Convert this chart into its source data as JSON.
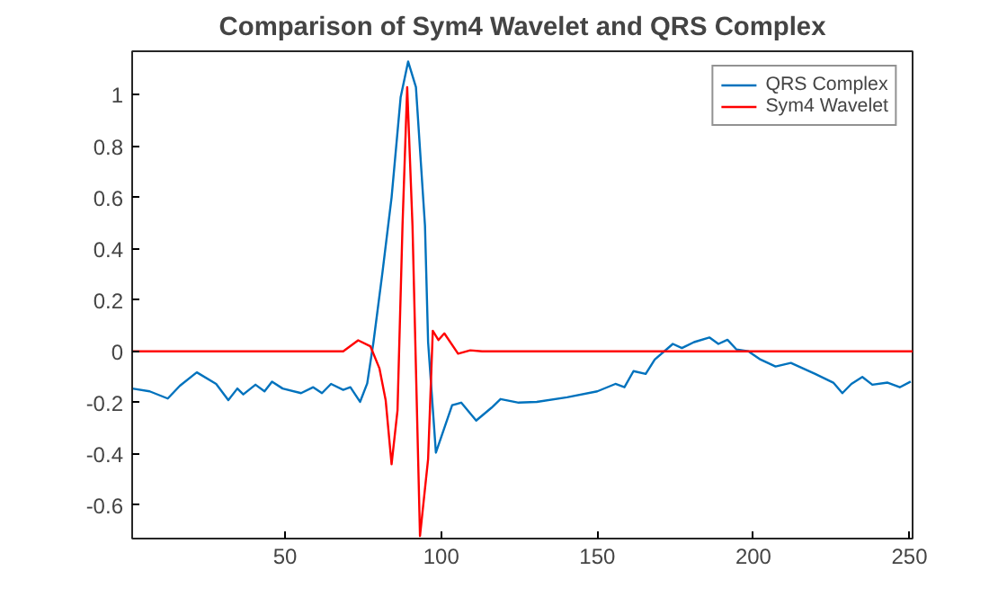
{
  "chart_data": {
    "type": "line",
    "title": "Comparison of Sym4 Wavelet and QRS Complex",
    "xlim": [
      1,
      251
    ],
    "xticks": [
      50,
      100,
      150,
      200,
      250
    ],
    "ylim": [
      -0.73,
      1.17
    ],
    "yticks": [
      -0.6,
      -0.4,
      -0.2,
      0,
      0.2,
      0.4,
      0.6,
      0.8,
      1
    ],
    "grid": false,
    "legend": "top right",
    "marker": "none",
    "line_style": "solid",
    "series": [
      {
        "name": "QRS Complex",
        "color": "#0072bd",
        "x": [
          1,
          6.6,
          12.4,
          16.3,
          21.7,
          27.9,
          31.8,
          34.7,
          36.6,
          40.5,
          43.4,
          45.8,
          49.2,
          55.1,
          59,
          61.8,
          64.7,
          68.6,
          70.9,
          74,
          76.3,
          78.3,
          81.2,
          84.1,
          87,
          89.4,
          91.9,
          94.8,
          95.8,
          98.3,
          103.5,
          106.4,
          111.2,
          116.1,
          119,
          124.8,
          130.6,
          140.3,
          150,
          155.8,
          158.7,
          161.6,
          165.5,
          168.4,
          174.2,
          177.1,
          181,
          185.9,
          188.8,
          191.7,
          194.6,
          198.4,
          202.3,
          207.1,
          212,
          219.8,
          225.6,
          228.5,
          231.4,
          234.9,
          238.1,
          243,
          246.9,
          250.4
        ],
        "values": [
          -0.145,
          -0.156,
          -0.184,
          -0.134,
          -0.082,
          -0.127,
          -0.19,
          -0.145,
          -0.168,
          -0.13,
          -0.156,
          -0.118,
          -0.145,
          -0.163,
          -0.14,
          -0.163,
          -0.127,
          -0.15,
          -0.14,
          -0.197,
          -0.125,
          0.036,
          0.31,
          0.6,
          0.99,
          1.13,
          1.03,
          0.49,
          0.036,
          -0.395,
          -0.21,
          -0.2,
          -0.27,
          -0.22,
          -0.186,
          -0.2,
          -0.197,
          -0.179,
          -0.156,
          -0.127,
          -0.14,
          -0.077,
          -0.088,
          -0.032,
          0.029,
          0.013,
          0.036,
          0.054,
          0.029,
          0.045,
          0.007,
          0.0,
          -0.032,
          -0.059,
          -0.045,
          -0.088,
          -0.122,
          -0.163,
          -0.127,
          -0.1,
          -0.13,
          -0.122,
          -0.14,
          -0.118
        ]
      },
      {
        "name": "Sym4 Wavelet",
        "color": "#ff0000",
        "x": [
          1,
          68.6,
          73.4,
          77.3,
          80.2,
          82.2,
          84.1,
          86,
          87.6,
          89.1,
          90.8,
          93.2,
          95.8,
          97.3,
          99.1,
          101,
          105.4,
          109.3,
          113.1,
          251
        ],
        "values": [
          0,
          0,
          0.043,
          0.02,
          -0.066,
          -0.19,
          -0.44,
          -0.23,
          0.49,
          1.03,
          0.49,
          -0.72,
          -0.42,
          0.08,
          0.044,
          0.07,
          -0.009,
          0.004,
          0,
          0
        ]
      }
    ]
  }
}
